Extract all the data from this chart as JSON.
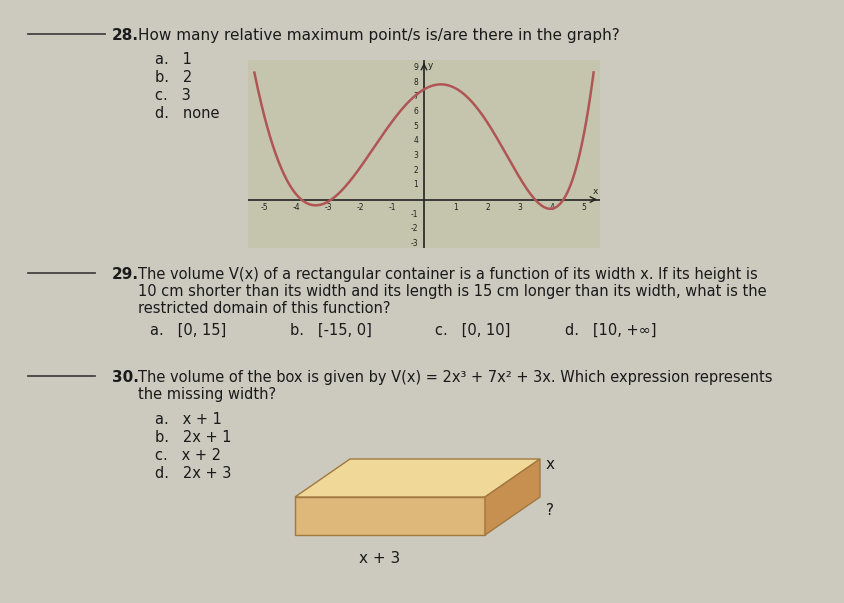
{
  "bg_color": "#ccc9bf",
  "text_color": "#1a1a1a",
  "curve_color": "#b05555",
  "graph_bg": "#c5c5ad",
  "grid_color": "#999988",
  "axis_color": "#222222",
  "blank_line_color": "#444444",
  "box_top_color": "#e8c88a",
  "box_front_color": "#d4a060",
  "box_side_color": "#c08040",
  "q28_num": "28.",
  "q28_q": "How many relative maximum point/s is/are there in the graph?",
  "q28_a": "a.   1",
  "q28_b": "b.   2",
  "q28_c": "c.   3",
  "q28_d": "d.   none",
  "q29_num": "29.",
  "q29_line1": "The volume V(x) of a rectangular container is a function of its width x. If its height is",
  "q29_line2": "10 cm shorter than its width and its length is 15 cm longer than its width, what is the",
  "q29_line3": "restricted domain of this function?",
  "q29_a": "a.   [0, 15]",
  "q29_b": "b.   [-15, 0]",
  "q29_c": "c.   [0, 10]",
  "q29_d": "d.   [10, +∞]",
  "q30_num": "30.",
  "q30_line1": "The volume of the box is given by V(x) = 2x³ + 7x² + 3x. Which expression represents",
  "q30_line2": "the missing width?",
  "q30_a": "a.   x + 1",
  "q30_b": "b.   2x + 1",
  "q30_c": "c.   x + 2",
  "q30_d": "d.   2x + 3",
  "box_x_label": "x",
  "box_q_label": "?",
  "box_bottom_label": "x + 3"
}
